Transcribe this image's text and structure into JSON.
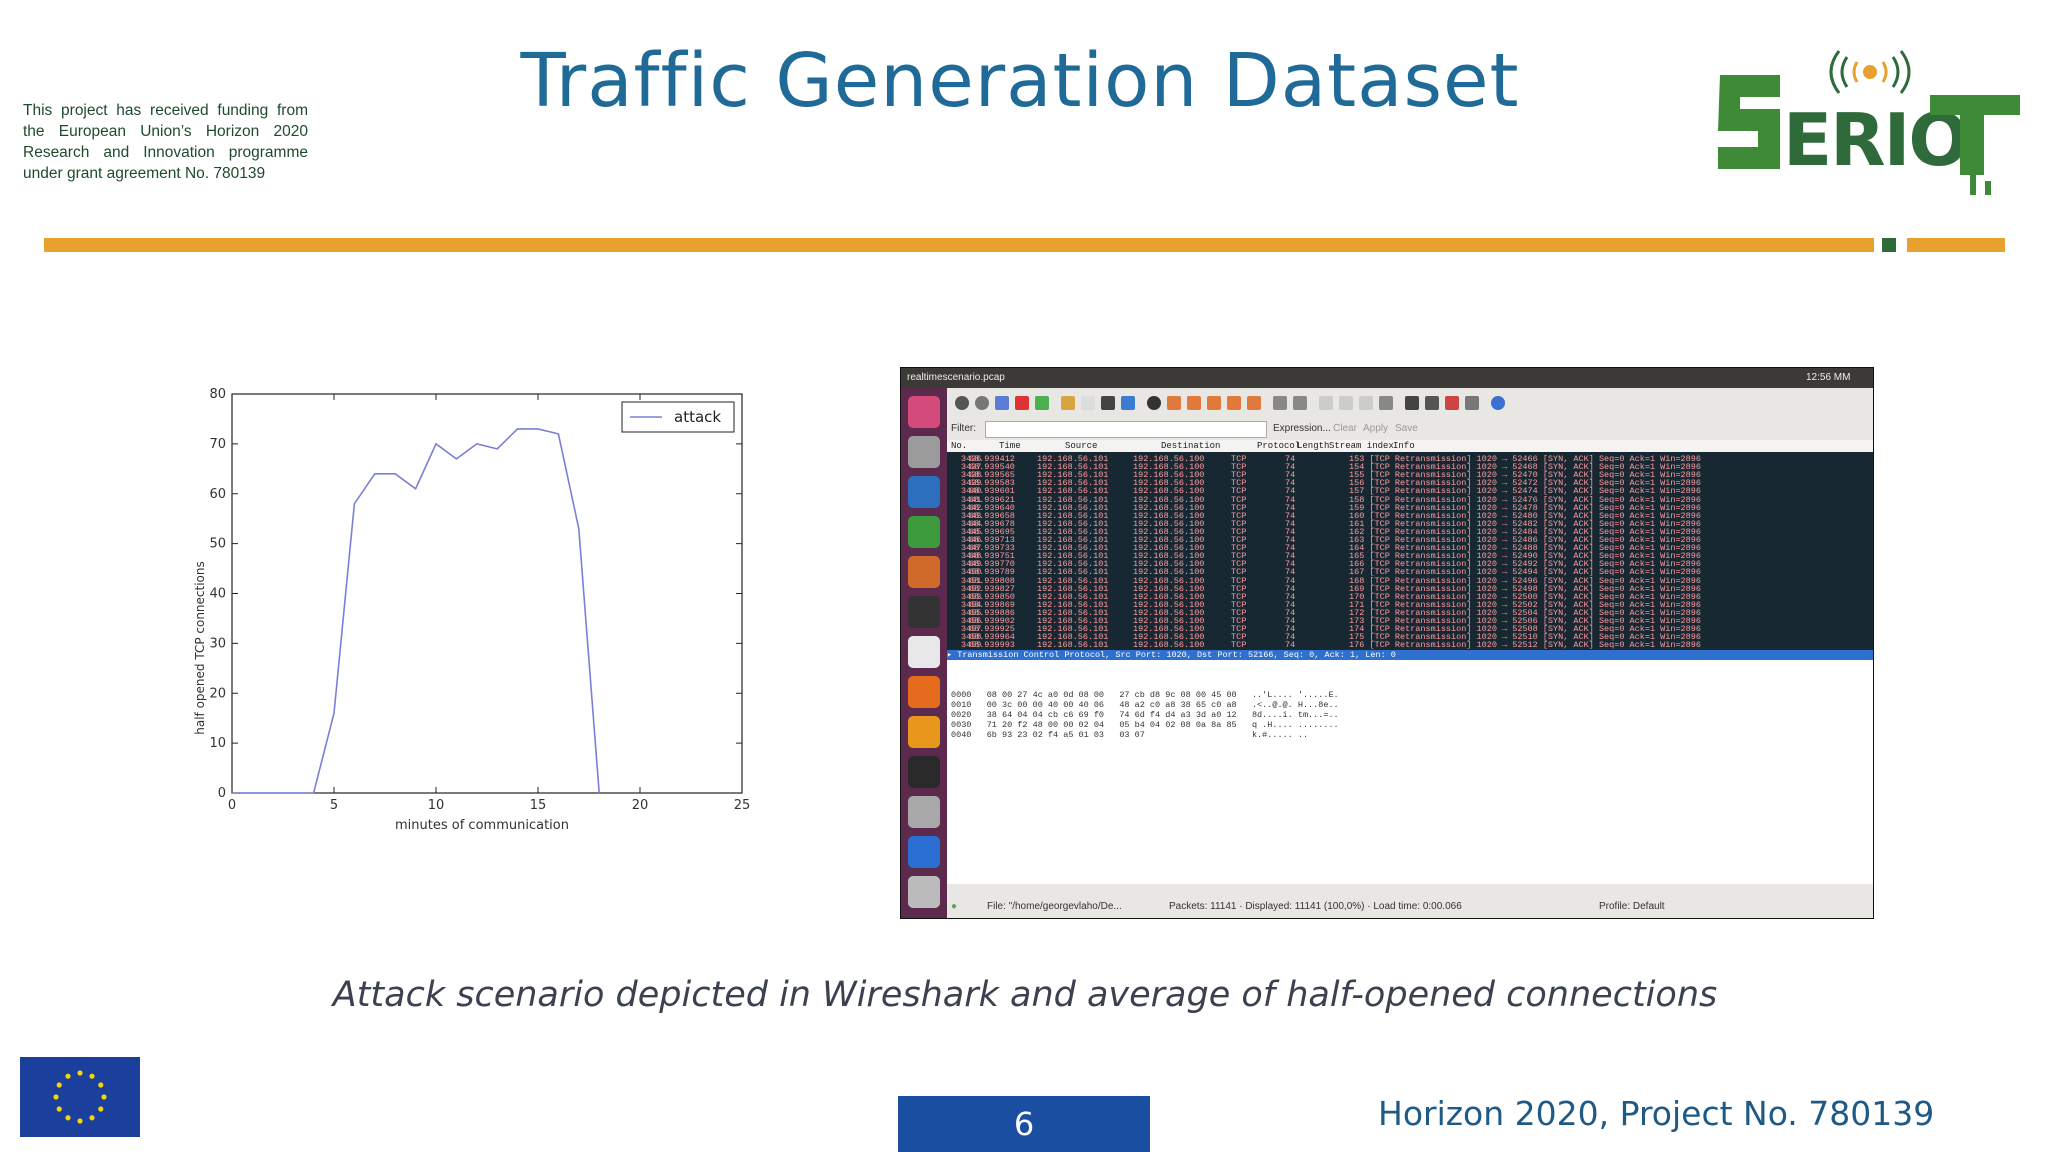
{
  "header": {
    "title": "Traffic Generation Dataset",
    "funding_text": "This project has received funding from the European Union’s Horizon 2020 Research and Innovation programme under grant agreement No. 780139",
    "logo_text": "SERIOT",
    "accent_color": "#e8a02e",
    "title_color": "#1f6a96"
  },
  "chart_data": {
    "type": "line",
    "title": "",
    "xlabel": "minutes of communication",
    "ylabel": "half opened TCP connections",
    "xlim": [
      0,
      25
    ],
    "ylim": [
      0,
      80
    ],
    "xticks": [
      0,
      5,
      10,
      15,
      20,
      25
    ],
    "yticks": [
      0,
      10,
      20,
      30,
      40,
      50,
      60,
      70,
      80
    ],
    "legend_position": "top-right",
    "grid": false,
    "series": [
      {
        "name": "attack",
        "color": "#7b7fd8",
        "x": [
          0,
          4,
          5,
          6,
          7,
          8,
          9,
          10,
          11,
          12,
          13,
          14,
          15,
          16,
          17,
          18
        ],
        "y": [
          0,
          0,
          16,
          58,
          64,
          64,
          61,
          70,
          67,
          70,
          69,
          73,
          73,
          72,
          53,
          0
        ]
      }
    ]
  },
  "wireshark": {
    "window_title": "realtimescenario.pcap",
    "clock": "12:56 MM",
    "filter_label": "Filter:",
    "filter_actions": [
      "Expression...",
      "Clear",
      "Apply",
      "Save"
    ],
    "columns": [
      "No.",
      "Time",
      "Source",
      "Destination",
      "Protocol",
      "Length",
      "Stream index",
      "Info"
    ],
    "rows": [
      {
        "no": "3436",
        "time": "68.939412",
        "src": "192.168.56.101",
        "dst": "192.168.56.100",
        "proto": "TCP",
        "len": "74",
        "info": "153 [TCP Retransmission] 1020 → 52466 [SYN, ACK] Seq=0 Ack=1 Win=2896"
      },
      {
        "no": "3437",
        "time": "68.939540",
        "src": "192.168.56.101",
        "dst": "192.168.56.100",
        "proto": "TCP",
        "len": "74",
        "info": "154 [TCP Retransmission] 1020 → 52468 [SYN, ACK] Seq=0 Ack=1 Win=2896"
      },
      {
        "no": "3438",
        "time": "68.939565",
        "src": "192.168.56.101",
        "dst": "192.168.56.100",
        "proto": "TCP",
        "len": "74",
        "info": "155 [TCP Retransmission] 1020 → 52470 [SYN, ACK] Seq=0 Ack=1 Win=2896"
      },
      {
        "no": "3439",
        "time": "68.939583",
        "src": "192.168.56.101",
        "dst": "192.168.56.100",
        "proto": "TCP",
        "len": "74",
        "info": "156 [TCP Retransmission] 1020 → 52472 [SYN, ACK] Seq=0 Ack=1 Win=2896"
      },
      {
        "no": "3440",
        "time": "68.939601",
        "src": "192.168.56.101",
        "dst": "192.168.56.100",
        "proto": "TCP",
        "len": "74",
        "info": "157 [TCP Retransmission] 1020 → 52474 [SYN, ACK] Seq=0 Ack=1 Win=2896"
      },
      {
        "no": "3441",
        "time": "68.939621",
        "src": "192.168.56.101",
        "dst": "192.168.56.100",
        "proto": "TCP",
        "len": "74",
        "info": "158 [TCP Retransmission] 1020 → 52476 [SYN, ACK] Seq=0 Ack=1 Win=2896"
      },
      {
        "no": "3442",
        "time": "68.939640",
        "src": "192.168.56.101",
        "dst": "192.168.56.100",
        "proto": "TCP",
        "len": "74",
        "info": "159 [TCP Retransmission] 1020 → 52478 [SYN, ACK] Seq=0 Ack=1 Win=2896"
      },
      {
        "no": "3443",
        "time": "68.939658",
        "src": "192.168.56.101",
        "dst": "192.168.56.100",
        "proto": "TCP",
        "len": "74",
        "info": "160 [TCP Retransmission] 1020 → 52480 [SYN, ACK] Seq=0 Ack=1 Win=2896"
      },
      {
        "no": "3444",
        "time": "68.939678",
        "src": "192.168.56.101",
        "dst": "192.168.56.100",
        "proto": "TCP",
        "len": "74",
        "info": "161 [TCP Retransmission] 1020 → 52482 [SYN, ACK] Seq=0 Ack=1 Win=2896"
      },
      {
        "no": "3445",
        "time": "68.939695",
        "src": "192.168.56.101",
        "dst": "192.168.56.100",
        "proto": "TCP",
        "len": "74",
        "info": "162 [TCP Retransmission] 1020 → 52484 [SYN, ACK] Seq=0 Ack=1 Win=2896"
      },
      {
        "no": "3446",
        "time": "68.939713",
        "src": "192.168.56.101",
        "dst": "192.168.56.100",
        "proto": "TCP",
        "len": "74",
        "info": "163 [TCP Retransmission] 1020 → 52486 [SYN, ACK] Seq=0 Ack=1 Win=2896"
      },
      {
        "no": "3447",
        "time": "68.939733",
        "src": "192.168.56.101",
        "dst": "192.168.56.100",
        "proto": "TCP",
        "len": "74",
        "info": "164 [TCP Retransmission] 1020 → 52488 [SYN, ACK] Seq=0 Ack=1 Win=2896"
      },
      {
        "no": "3448",
        "time": "68.939751",
        "src": "192.168.56.101",
        "dst": "192.168.56.100",
        "proto": "TCP",
        "len": "74",
        "info": "165 [TCP Retransmission] 1020 → 52490 [SYN, ACK] Seq=0 Ack=1 Win=2896"
      },
      {
        "no": "3449",
        "time": "68.939770",
        "src": "192.168.56.101",
        "dst": "192.168.56.100",
        "proto": "TCP",
        "len": "74",
        "info": "166 [TCP Retransmission] 1020 → 52492 [SYN, ACK] Seq=0 Ack=1 Win=2896"
      },
      {
        "no": "3450",
        "time": "68.939789",
        "src": "192.168.56.101",
        "dst": "192.168.56.100",
        "proto": "TCP",
        "len": "74",
        "info": "167 [TCP Retransmission] 1020 → 52494 [SYN, ACK] Seq=0 Ack=1 Win=2896"
      },
      {
        "no": "3451",
        "time": "68.939808",
        "src": "192.168.56.101",
        "dst": "192.168.56.100",
        "proto": "TCP",
        "len": "74",
        "info": "168 [TCP Retransmission] 1020 → 52496 [SYN, ACK] Seq=0 Ack=1 Win=2896"
      },
      {
        "no": "3452",
        "time": "68.939827",
        "src": "192.168.56.101",
        "dst": "192.168.56.100",
        "proto": "TCP",
        "len": "74",
        "info": "169 [TCP Retransmission] 1020 → 52498 [SYN, ACK] Seq=0 Ack=1 Win=2896"
      },
      {
        "no": "3453",
        "time": "68.939850",
        "src": "192.168.56.101",
        "dst": "192.168.56.100",
        "proto": "TCP",
        "len": "74",
        "info": "170 [TCP Retransmission] 1020 → 52500 [SYN, ACK] Seq=0 Ack=1 Win=2896"
      },
      {
        "no": "3454",
        "time": "68.939869",
        "src": "192.168.56.101",
        "dst": "192.168.56.100",
        "proto": "TCP",
        "len": "74",
        "info": "171 [TCP Retransmission] 1020 → 52502 [SYN, ACK] Seq=0 Ack=1 Win=2896"
      },
      {
        "no": "3455",
        "time": "68.939886",
        "src": "192.168.56.101",
        "dst": "192.168.56.100",
        "proto": "TCP",
        "len": "74",
        "info": "172 [TCP Retransmission] 1020 → 52504 [SYN, ACK] Seq=0 Ack=1 Win=2896"
      },
      {
        "no": "3456",
        "time": "68.939902",
        "src": "192.168.56.101",
        "dst": "192.168.56.100",
        "proto": "TCP",
        "len": "74",
        "info": "173 [TCP Retransmission] 1020 → 52506 [SYN, ACK] Seq=0 Ack=1 Win=2896"
      },
      {
        "no": "3457",
        "time": "68.939925",
        "src": "192.168.56.101",
        "dst": "192.168.56.100",
        "proto": "TCP",
        "len": "74",
        "info": "174 [TCP Retransmission] 1020 → 52508 [SYN, ACK] Seq=0 Ack=1 Win=2896"
      },
      {
        "no": "3458",
        "time": "68.939964",
        "src": "192.168.56.101",
        "dst": "192.168.56.100",
        "proto": "TCP",
        "len": "74",
        "info": "175 [TCP Retransmission] 1020 → 52510 [SYN, ACK] Seq=0 Ack=1 Win=2896"
      },
      {
        "no": "3459",
        "time": "68.939993",
        "src": "192.168.56.101",
        "dst": "192.168.56.100",
        "proto": "TCP",
        "len": "74",
        "info": "176 [TCP Retransmission] 1020 → 52512 [SYN, ACK] Seq=0 Ack=1 Win=2896"
      }
    ],
    "selected_detail": "▸ Transmission Control Protocol, Src Port: 1020, Dst Port: 52166, Seq: 0, Ack: 1, Len: 0",
    "hex_rows": [
      "0000   08 00 27 4c a0 0d 08 00   27 cb d8 9c 08 00 45 00   ..'L.... '.....E.",
      "0010   00 3c 00 00 40 00 40 06   48 a2 c0 a8 38 65 c0 a8   .<..@.@. H...8e..",
      "0020   38 64 04 04 cb c6 69 f0   74 6d f4 d4 a3 3d a0 12   8d....i. tm...=..",
      "0030   71 20 f2 48 00 00 02 04   05 b4 04 02 08 0a 8a 85   q .H.... ........",
      "0040   6b 93 23 02 f4 a5 01 03   03 07                     k.#..... .."
    ],
    "status_file": "File: \"/home/georgevlaho/De...",
    "status_packets": "Packets: 11141 · Displayed: 11141 (100,0%) · Load time: 0:00.066",
    "status_profile": "Profile: Default"
  },
  "caption": "Attack scenario depicted in Wireshark and average of half-opened connections",
  "footer": {
    "page_number": "6",
    "project": "Horizon 2020, Project No. 780139",
    "page_box_color": "#1a4ea0"
  }
}
